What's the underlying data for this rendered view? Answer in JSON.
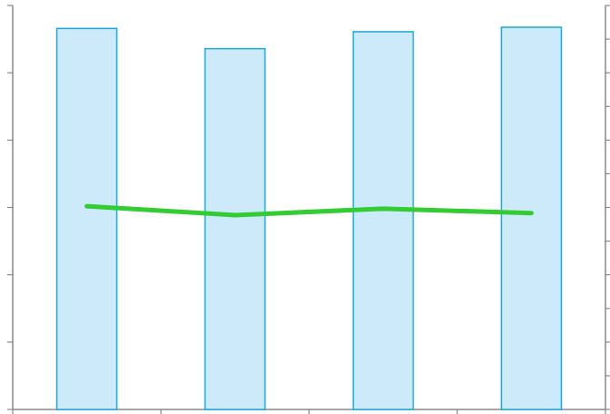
{
  "chart_data": {
    "type": "bar",
    "categories": [
      "",
      "",
      "",
      ""
    ],
    "series": [
      {
        "type": "bar",
        "values": [
          0.943,
          0.893,
          0.935,
          0.946
        ]
      },
      {
        "type": "line",
        "axis": "right",
        "values": [
          0.503,
          0.481,
          0.497,
          0.486
        ]
      }
    ],
    "ylim": [
      0,
      1
    ],
    "y2lim": [
      0,
      1
    ],
    "grid": false,
    "colors": {
      "bar_fill": "#cdeafb",
      "bar_stroke": "#1aa7d8",
      "line": "#33cc33",
      "axis": "#888888"
    }
  }
}
